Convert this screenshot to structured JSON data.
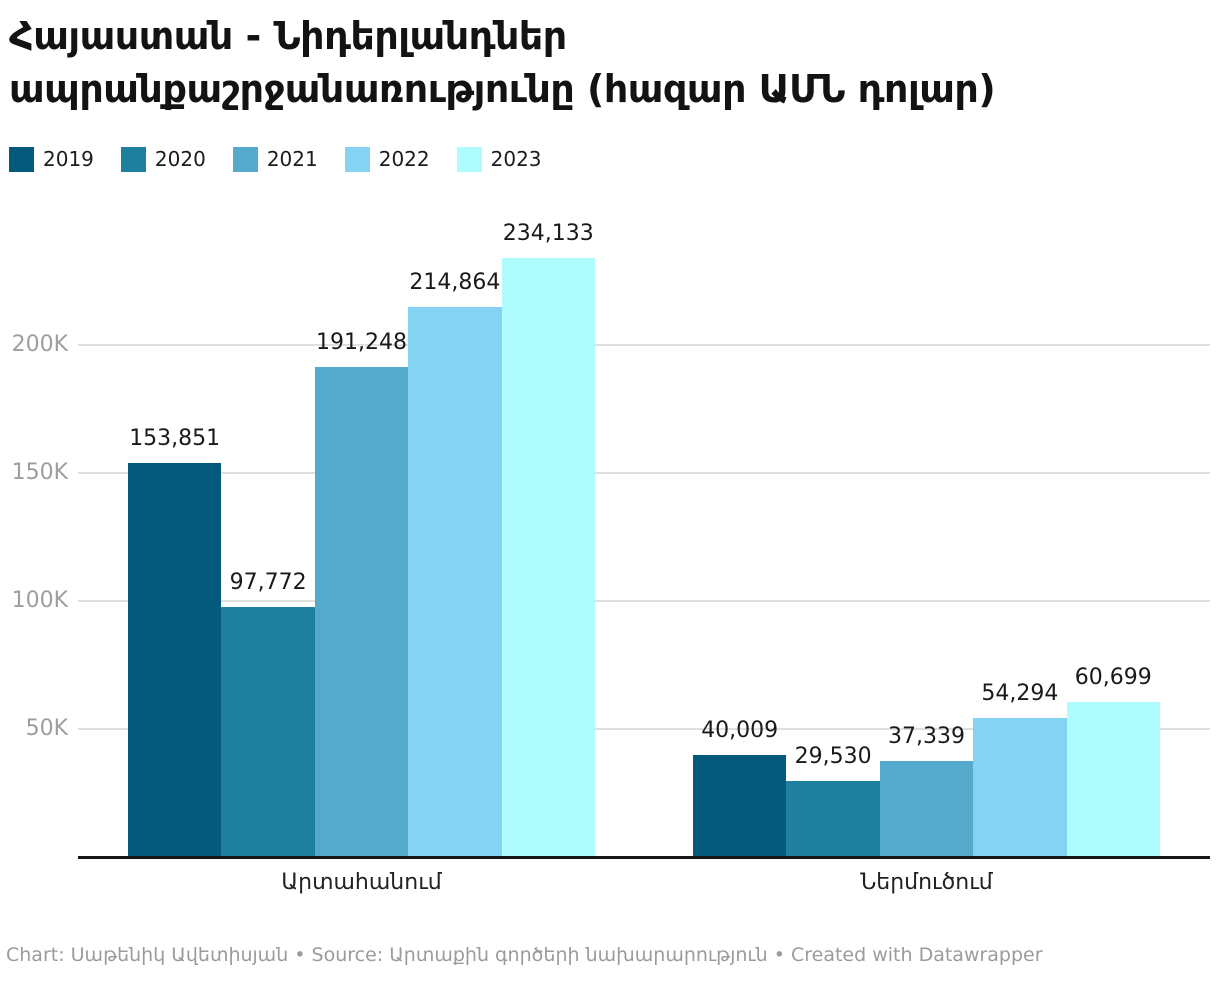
{
  "header": {
    "title_lines": [
      "Հայաստան - Նիդերլանդներ",
      "ապրանքաշրջանառությունը (հազար ԱՄՆ դոլար)"
    ]
  },
  "chart_data": {
    "type": "bar",
    "title": "Հայաստան - Նիդերլանդներ ապրանքաշրջանառությունը (հազար ԱՄՆ դոլար)",
    "categories": [
      "Արտահանում",
      "Ներմուծում"
    ],
    "series": [
      {
        "name": "2019",
        "color": "#045A7B",
        "values": [
          153851,
          40009
        ]
      },
      {
        "name": "2020",
        "color": "#1F7F9E",
        "values": [
          97772,
          29530
        ]
      },
      {
        "name": "2021",
        "color": "#55AACB",
        "values": [
          191248,
          37339
        ]
      },
      {
        "name": "2022",
        "color": "#84D3F3",
        "values": [
          214864,
          54294
        ]
      },
      {
        "name": "2023",
        "color": "#AEFCFE",
        "values": [
          234133,
          60699
        ]
      }
    ],
    "value_labels": [
      [
        "153,851",
        "97,772",
        "191,248",
        "214,864",
        "234,133"
      ],
      [
        "40,009",
        "29,530",
        "37,339",
        "54,294",
        "60,699"
      ]
    ],
    "y_axis": {
      "range": [
        0,
        250000
      ],
      "ticks": [
        {
          "value": 50000,
          "label": "50K"
        },
        {
          "value": 100000,
          "label": "100K"
        },
        {
          "value": 150000,
          "label": "150K"
        },
        {
          "value": 200000,
          "label": "200K"
        }
      ]
    },
    "grid": true,
    "legend_position": "top-left",
    "colors": {
      "gridline": "#dfdfdf",
      "baseline": "#17171a",
      "tick_label": "#9e9e9e",
      "value_label": "#1a1a1a"
    }
  },
  "footer": {
    "text": "Chart: Սաթենիկ Ավետիսյան • Source: Արտաքին գործերի նախարարություն • Created with Datawrapper"
  }
}
